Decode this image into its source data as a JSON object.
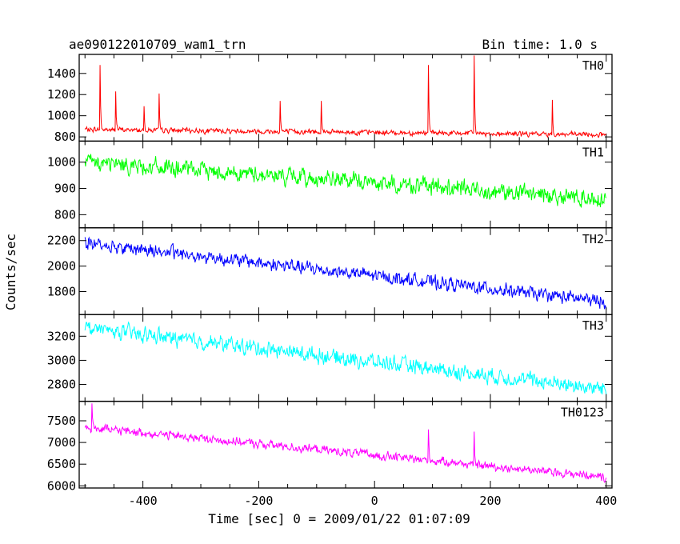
{
  "chart_data": {
    "type": "line",
    "title": "ae090122010709_wam1_trn",
    "bin_time_label": "Bin time: 1.0 s",
    "xlabel": "Time [sec] 0 = 2009/01/22 01:07:09",
    "ylabel": "Counts/sec",
    "xlim": [
      -510,
      410
    ],
    "xticks": [
      -400,
      -200,
      0,
      200,
      400
    ],
    "x_start": -500,
    "x_end": 400,
    "panels": [
      {
        "name": "TH0",
        "color": "#ff0000",
        "ylim": [
          760,
          1580
        ],
        "yticks": [
          800,
          1000,
          1200,
          1400
        ],
        "start_level": 870,
        "end_level": 820,
        "noise": 40,
        "spikes": [
          {
            "x": -474,
            "value": 1480
          },
          {
            "x": -447,
            "value": 1230
          },
          {
            "x": -398,
            "value": 1090
          },
          {
            "x": -372,
            "value": 1210
          },
          {
            "x": -163,
            "value": 1140
          },
          {
            "x": -92,
            "value": 1140
          },
          {
            "x": 93,
            "value": 1480
          },
          {
            "x": 172,
            "value": 1570
          },
          {
            "x": 307,
            "value": 1150
          }
        ]
      },
      {
        "name": "TH1",
        "color": "#00ff00",
        "ylim": [
          750,
          1080
        ],
        "yticks": [
          800,
          900,
          1000
        ],
        "start_level": 1000,
        "end_level": 860,
        "noise": 55,
        "spikes": []
      },
      {
        "name": "TH2",
        "color": "#0000ff",
        "ylim": [
          1620,
          2300
        ],
        "yticks": [
          1800,
          2000,
          2200
        ],
        "start_level": 2180,
        "end_level": 1720,
        "noise": 90,
        "spikes": []
      },
      {
        "name": "TH3",
        "color": "#00ffff",
        "ylim": [
          2660,
          3380
        ],
        "yticks": [
          2800,
          3000,
          3200
        ],
        "start_level": 3270,
        "end_level": 2760,
        "noise": 110,
        "spikes": []
      },
      {
        "name": "TH0123",
        "color": "#ff00ff",
        "ylim": [
          5950,
          7950
        ],
        "yticks": [
          6000,
          6500,
          7000,
          7500
        ],
        "start_level": 7350,
        "end_level": 6200,
        "noise": 170,
        "spikes": [
          {
            "x": -488,
            "value": 7900
          },
          {
            "x": 93,
            "value": 7300
          },
          {
            "x": 172,
            "value": 7250
          }
        ]
      }
    ]
  }
}
